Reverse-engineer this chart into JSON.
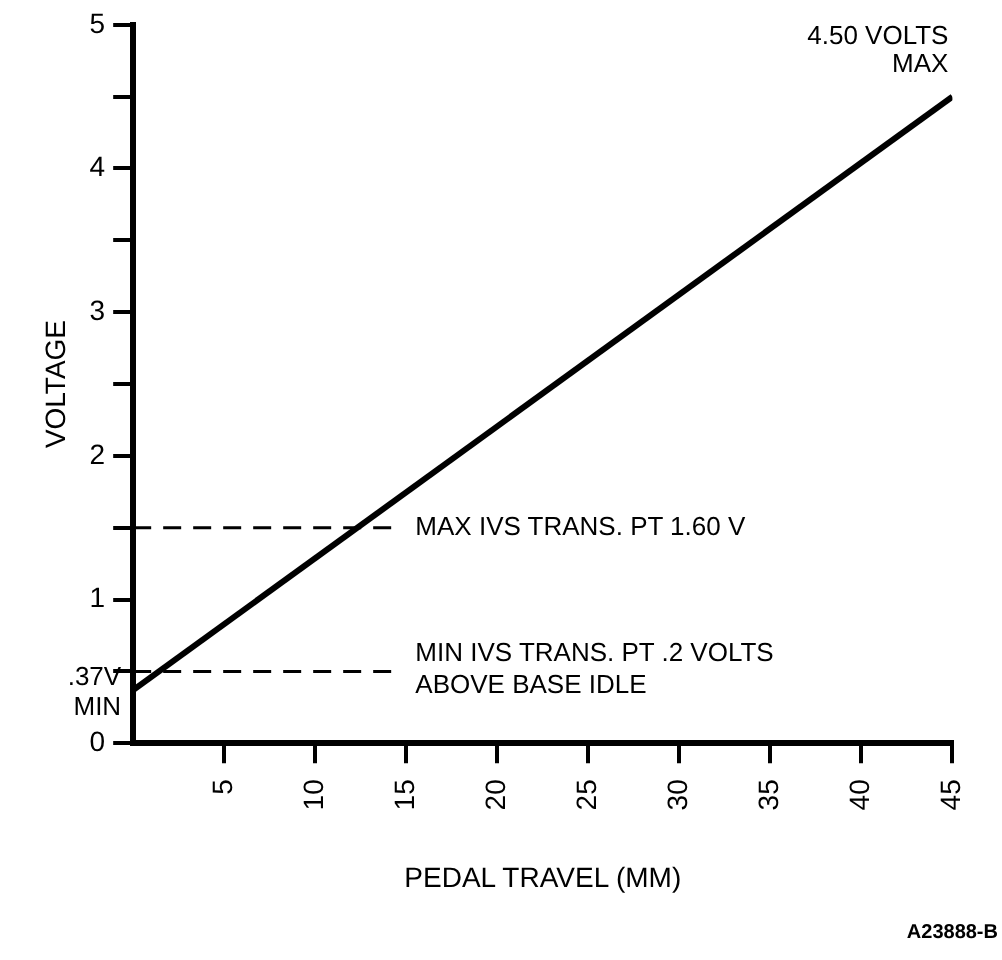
{
  "chart_data": {
    "type": "line",
    "xlabel": "PEDAL TRAVEL (MM)",
    "ylabel": "VOLTAGE",
    "x": [
      0,
      45
    ],
    "series": [
      {
        "color": "#000000",
        "values": [
          0.37,
          4.5
        ]
      }
    ],
    "xlim": [
      0,
      45
    ],
    "xticks": [
      5,
      10,
      15,
      20,
      25,
      30,
      35,
      40,
      45
    ],
    "ylim": [
      0,
      5
    ],
    "yticks": [
      0,
      {
        "value": 0.5,
        "label": null
      },
      1,
      {
        "value": 1.5,
        "label": null
      },
      2,
      {
        "value": 2.5,
        "label": null
      },
      3,
      {
        "value": 3.5,
        "label": null
      },
      4,
      {
        "value": 4.5,
        "label": null
      },
      5
    ],
    "ref_lines": [
      {
        "axis": "y",
        "value": 0.5,
        "label": "MIN IVS TRANS. PT .2 VOLTS\nABOVE BASE IDLE",
        "line_style": "dashed"
      },
      {
        "axis": "y",
        "value": 1.5,
        "label": "MAX IVS TRANS. PT 1.60 V",
        "line_style": "dashed"
      }
    ],
    "annotations": [
      {
        "text": ".37V\nMIN",
        "x": 0,
        "y": 0.37
      },
      {
        "text": "4.50 VOLTS\nMAX",
        "x": 45,
        "y": 4.5
      },
      "A23888-B"
    ],
    "grid": false,
    "legend": false,
    "marker": "none",
    "line_style": "solid"
  }
}
